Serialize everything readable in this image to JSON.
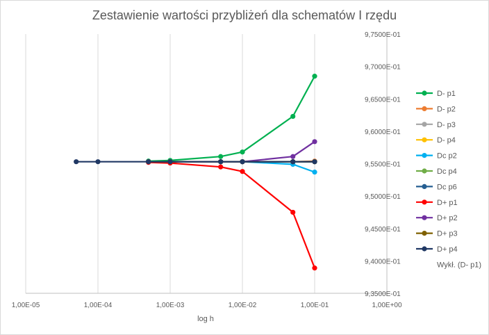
{
  "chart_data": {
    "type": "line",
    "title": "Zestawienie wartości przybliżeń dla schematów I rzędu",
    "xlabel": "log h",
    "ylabel": "",
    "x_scale": "log",
    "xlim": [
      1e-05,
      1
    ],
    "ylim": [
      0.935,
      0.975
    ],
    "x_ticks": [
      1e-05,
      0.0001,
      0.001,
      0.01,
      0.1,
      1
    ],
    "x_tick_labels": [
      "1,00E-05",
      "1,00E-04",
      "1,00E-03",
      "1,00E-02",
      "1,00E-01",
      "1,00E+00"
    ],
    "y_ticks": [
      0.935,
      0.94,
      0.945,
      0.95,
      0.955,
      0.96,
      0.965,
      0.97,
      0.975
    ],
    "y_tick_labels": [
      "9,3500E-01",
      "9,4000E-01",
      "9,4500E-01",
      "9,5000E-01",
      "9,5500E-01",
      "9,6000E-01",
      "9,6500E-01",
      "9,7000E-01",
      "9,7500E-01"
    ],
    "y_axis_side": "right",
    "grid": "vertical",
    "legend_position": "right",
    "series": [
      {
        "name": "D- p1",
        "color": "#00b050",
        "x": [
          0.0005,
          0.001,
          0.005,
          0.01,
          0.05,
          0.1
        ],
        "y": [
          0.9554,
          0.9555,
          0.9561,
          0.9568,
          0.9623,
          0.9685
        ]
      },
      {
        "name": "D- p2",
        "color": "#ed7d31",
        "x": [
          0.0005,
          0.001,
          0.005,
          0.01,
          0.05,
          0.1
        ],
        "y": [
          0.9553,
          0.9553,
          0.9553,
          0.9553,
          0.9553,
          0.9554
        ]
      },
      {
        "name": "D- p3",
        "color": "#a5a5a5",
        "x": [
          0.0005,
          0.001,
          0.005,
          0.01,
          0.05,
          0.1
        ],
        "y": [
          0.9553,
          0.9553,
          0.9553,
          0.9553,
          0.9553,
          0.9553
        ]
      },
      {
        "name": "D- p4",
        "color": "#ffc000",
        "x": [
          0.0005,
          0.001,
          0.005,
          0.01,
          0.05,
          0.1
        ],
        "y": [
          0.9553,
          0.9553,
          0.9553,
          0.9553,
          0.9553,
          0.9553
        ]
      },
      {
        "name": "Dc p2",
        "color": "#00b0f0",
        "x": [
          0.0005,
          0.001,
          0.005,
          0.01,
          0.05,
          0.1
        ],
        "y": [
          0.9553,
          0.9553,
          0.9553,
          0.9553,
          0.9549,
          0.9537
        ]
      },
      {
        "name": "Dc p4",
        "color": "#70ad47",
        "x": [
          0.0005,
          0.001,
          0.005,
          0.01,
          0.05,
          0.1
        ],
        "y": [
          0.9553,
          0.9553,
          0.9553,
          0.9553,
          0.9553,
          0.9553
        ]
      },
      {
        "name": "Dc p6",
        "color": "#255e91",
        "x": [
          0.0005,
          0.001,
          0.005,
          0.01,
          0.05,
          0.1
        ],
        "y": [
          0.9553,
          0.9553,
          0.9553,
          0.9553,
          0.9553,
          0.9553
        ]
      },
      {
        "name": "D+ p1",
        "color": "#ff0000",
        "x": [
          0.0005,
          0.001,
          0.005,
          0.01,
          0.05,
          0.1
        ],
        "y": [
          0.9552,
          0.9551,
          0.9545,
          0.9538,
          0.9475,
          0.9389
        ]
      },
      {
        "name": "D+ p2",
        "color": "#7030a0",
        "x": [
          0.0005,
          0.001,
          0.005,
          0.01,
          0.05,
          0.1
        ],
        "y": [
          0.9553,
          0.9553,
          0.9553,
          0.9553,
          0.9561,
          0.9584
        ]
      },
      {
        "name": "D+ p3",
        "color": "#7f6000",
        "x": [
          0.0005,
          0.001,
          0.005,
          0.01,
          0.05,
          0.1
        ],
        "y": [
          0.9553,
          0.9553,
          0.9553,
          0.9553,
          0.9553,
          0.9553
        ]
      },
      {
        "name": "D+ p4",
        "color": "#203864",
        "x": [
          5e-05,
          0.0001,
          0.0005,
          0.001,
          0.005,
          0.01,
          0.05,
          0.1
        ],
        "y": [
          0.9553,
          0.9553,
          0.9553,
          0.9553,
          0.9553,
          0.9553,
          0.9553,
          0.9553
        ]
      }
    ],
    "trendline_legend": "Wykł. (D- p1)"
  }
}
